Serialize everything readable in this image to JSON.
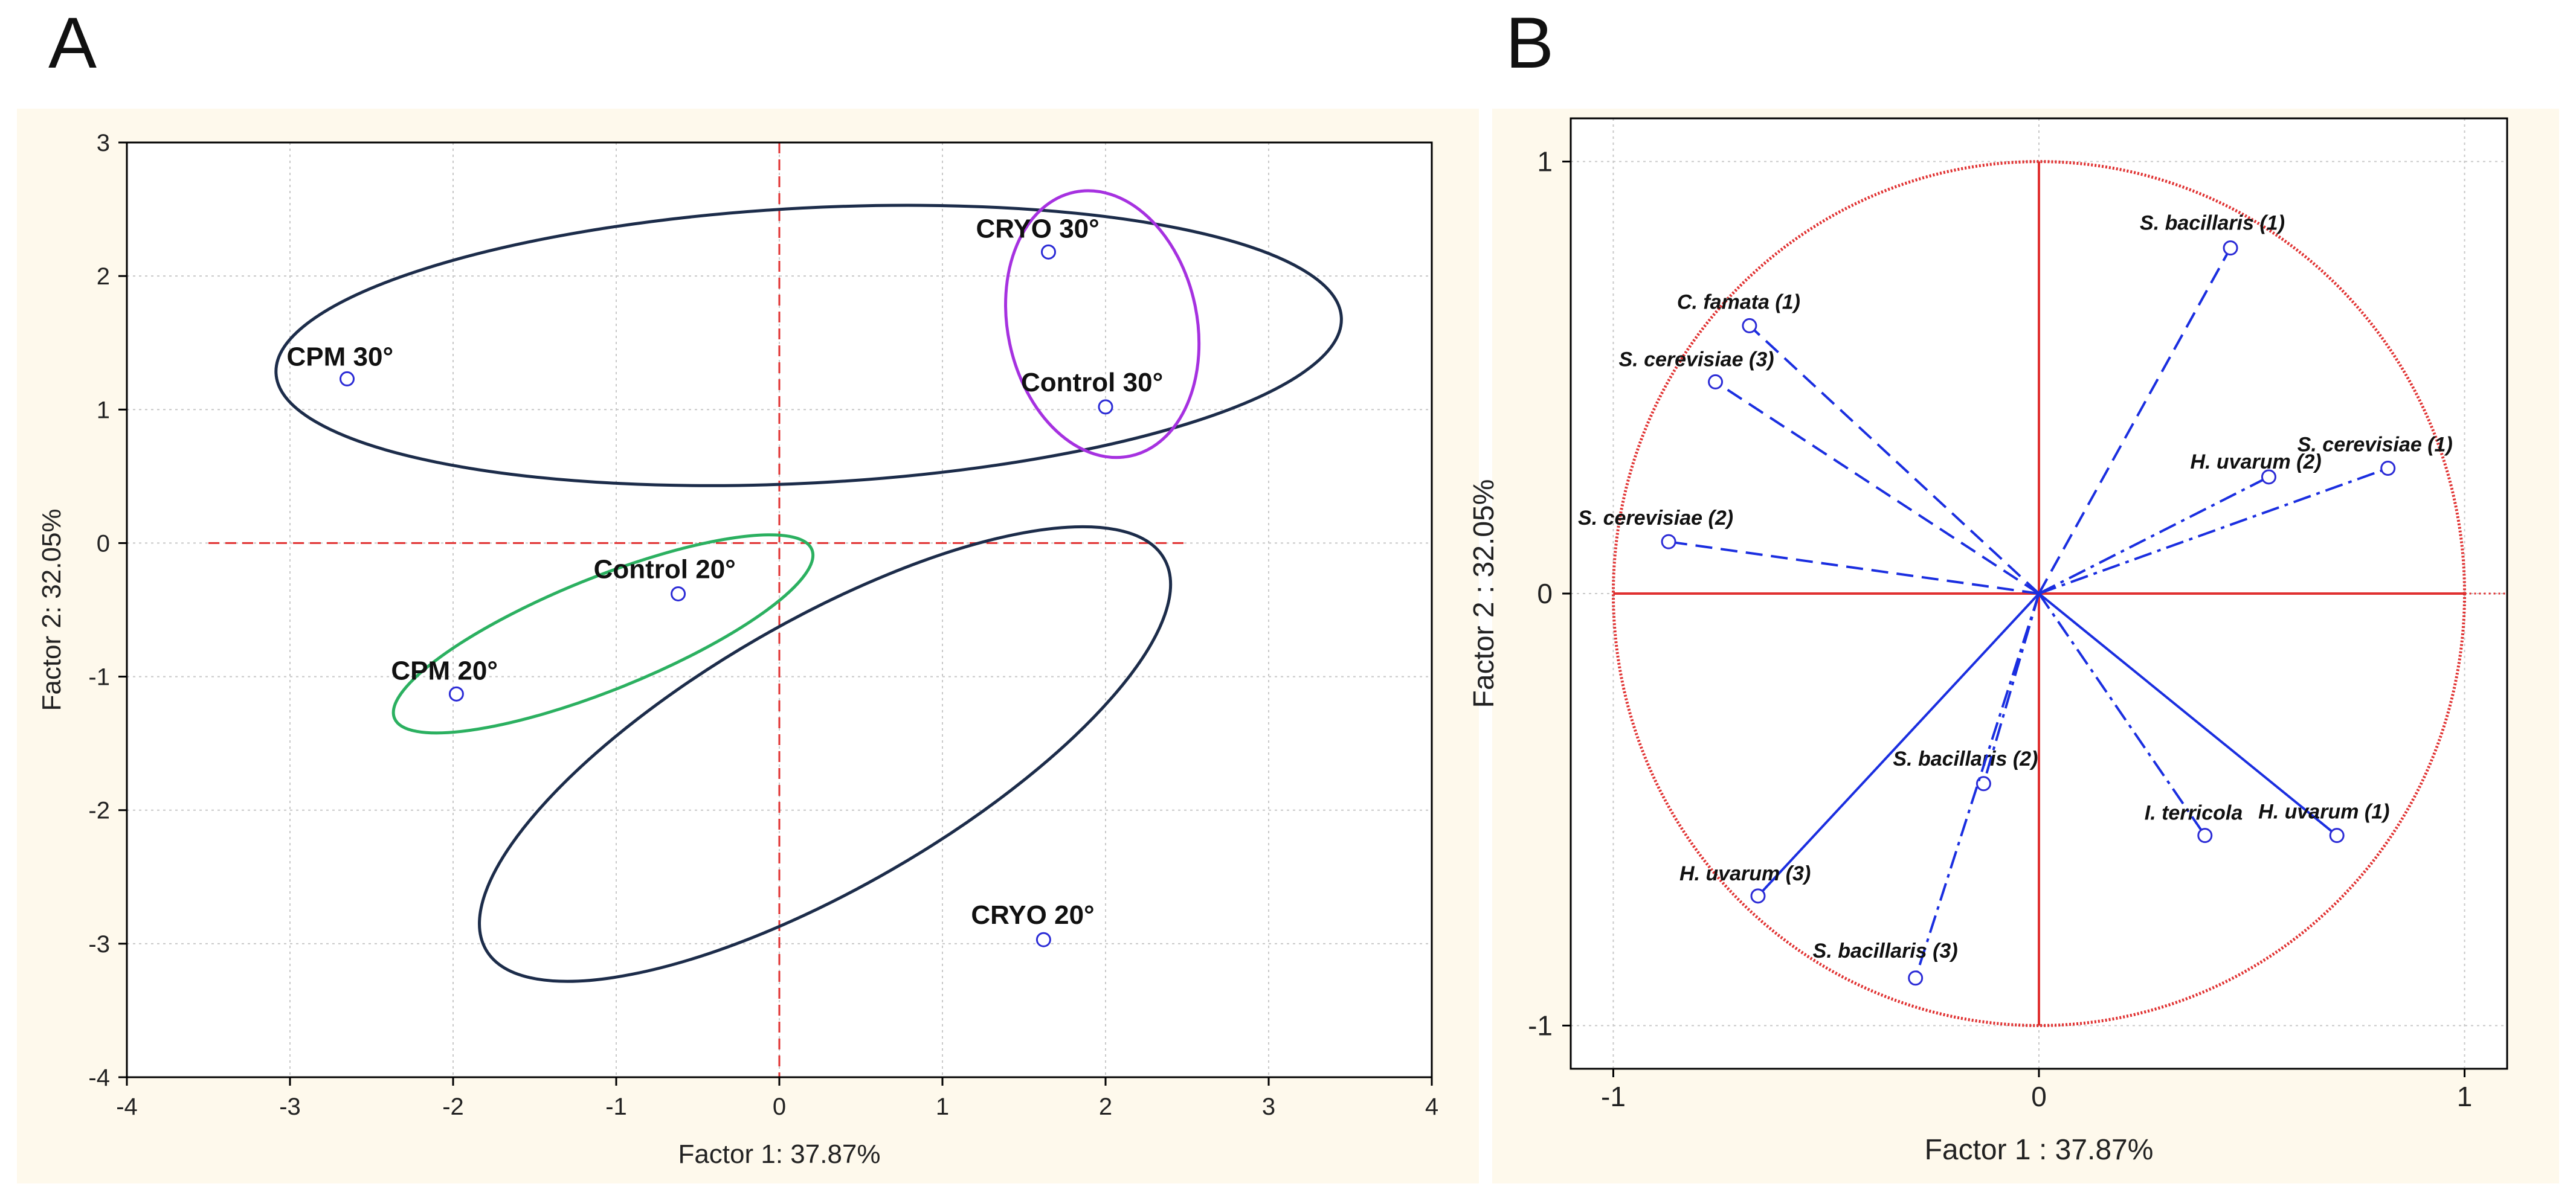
{
  "panels": {
    "a": {
      "label": "A"
    },
    "b": {
      "label": "B"
    }
  },
  "colors": {
    "panel_background": "#fef9ec",
    "plot_background": "#ffffff",
    "grid": "#c8c8c8",
    "axis_text": "#222222",
    "point": "#2b2bd6",
    "ellipse_outer": "#1c2c4a",
    "ellipse_cryo_control30": "#a631e0",
    "ellipse_cpm_control20": "#2bb060",
    "reference_line": "#e03030",
    "vector": "#1a2ee0"
  },
  "chart_data": [
    {
      "panel": "A",
      "type": "scatter",
      "xlabel": "Factor 1: 37.87%",
      "ylabel": "Factor 2: 32.05%",
      "xlim": [
        -4,
        4
      ],
      "ylim": [
        -4,
        3
      ],
      "xticks": [
        "-4",
        "-3",
        "-2",
        "-1",
        "0",
        "1",
        "2",
        "3",
        "4"
      ],
      "yticks": [
        "3",
        "2",
        "1",
        "0",
        "-1",
        "-2",
        "-3",
        "-4"
      ],
      "grid": true,
      "points": [
        {
          "label": "CRYO 30°",
          "x": 1.65,
          "y": 2.18
        },
        {
          "label": "Control 30°",
          "x": 2.0,
          "y": 1.02
        },
        {
          "label": "CPM 30°",
          "x": -2.65,
          "y": 1.23
        },
        {
          "label": "Control 20°",
          "x": -0.62,
          "y": -0.38
        },
        {
          "label": "CPM 20°",
          "x": -1.98,
          "y": -1.13
        },
        {
          "label": "CRYO 20°",
          "x": 1.62,
          "y": -2.97
        }
      ],
      "ellipses": [
        {
          "group": [
            "CPM 30°",
            "CRYO 30°",
            "Control 30°"
          ],
          "color": "ellipse_outer"
        },
        {
          "group": [
            "CRYO 30°",
            "Control 30°"
          ],
          "color": "ellipse_cryo_control30"
        },
        {
          "group": [
            "CPM 20°",
            "Control 20°",
            "CRYO 20°"
          ],
          "color": "ellipse_outer"
        },
        {
          "group": [
            "CPM 20°",
            "Control 20°"
          ],
          "color": "ellipse_cpm_control20"
        }
      ]
    },
    {
      "panel": "B",
      "type": "scatter",
      "xlabel": "Factor 1 : 37.87%",
      "ylabel": "Factor 2 : 32.05%",
      "xlim": [
        -1.1,
        1.1
      ],
      "ylim": [
        -1.1,
        1.1
      ],
      "xticks": [
        "-1",
        "0",
        "1"
      ],
      "yticks": [
        "1",
        "0",
        "-1"
      ],
      "grid": true,
      "unit_circle": true,
      "vectors": [
        {
          "label": "S. bacillaris (1)",
          "x": 0.45,
          "y": 0.8,
          "line": "dashed"
        },
        {
          "label": "C. famata (1)",
          "x": -0.68,
          "y": 0.62,
          "line": "dashed"
        },
        {
          "label": "S. cerevisiae (3)",
          "x": -0.76,
          "y": 0.49,
          "line": "dashed"
        },
        {
          "label": "H. uvarum (2)",
          "x": 0.54,
          "y": 0.27,
          "line": "dashdot"
        },
        {
          "label": "S. cerevisiae (1)",
          "x": 0.82,
          "y": 0.29,
          "line": "dashdot"
        },
        {
          "label": "S. cerevisiae (2)",
          "x": -0.87,
          "y": 0.12,
          "line": "dashed"
        },
        {
          "label": "S. bacillaris (2)",
          "x": -0.13,
          "y": -0.44,
          "line": "dashdot"
        },
        {
          "label": "I. terricola",
          "x": 0.39,
          "y": -0.56,
          "line": "dashdot"
        },
        {
          "label": "H. uvarum (1)",
          "x": 0.7,
          "y": -0.56,
          "line": "solid"
        },
        {
          "label": "H. uvarum (3)",
          "x": -0.66,
          "y": -0.7,
          "line": "solid"
        },
        {
          "label": "S. bacillaris (3)",
          "x": -0.29,
          "y": -0.89,
          "line": "dashdot"
        }
      ]
    }
  ]
}
